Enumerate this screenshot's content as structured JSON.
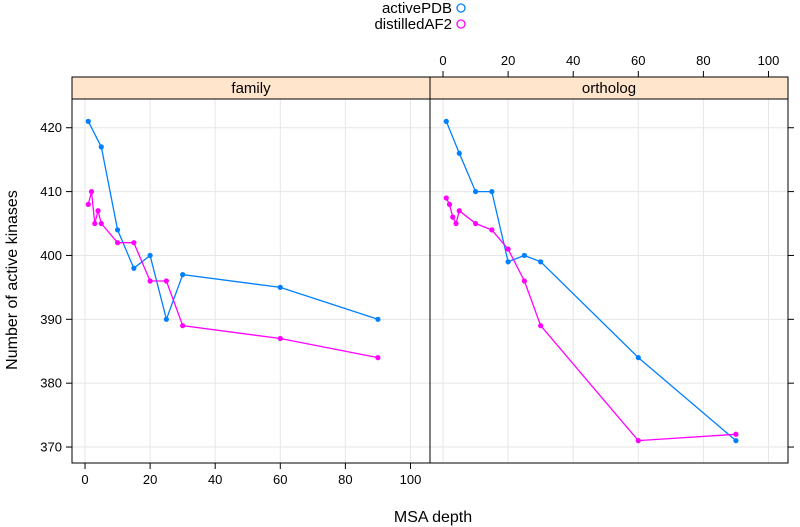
{
  "chart_data": {
    "type": "line",
    "xlabel": "MSA depth",
    "ylabel": "Number of active kinases",
    "xlim": [
      -4,
      106
    ],
    "ylim": [
      367.5,
      424.5
    ],
    "x_ticks": [
      0,
      20,
      40,
      60,
      80,
      100
    ],
    "y_ticks": [
      370,
      380,
      390,
      400,
      410,
      420
    ],
    "grid": true,
    "legend": {
      "placement": "top",
      "entries": [
        {
          "name": "activePDB",
          "color": "#0080ff"
        },
        {
          "name": "distilledAF2",
          "color": "#ff00ff"
        }
      ]
    },
    "panels": [
      {
        "strip": "family",
        "series": [
          {
            "name": "activePDB",
            "color": "#0080ff",
            "x": [
              1,
              5,
              10,
              15,
              20,
              25,
              30,
              60,
              90
            ],
            "y": [
              421,
              417,
              404,
              398,
              400,
              390,
              397,
              395,
              390
            ]
          },
          {
            "name": "distilledAF2",
            "color": "#ff00ff",
            "x": [
              1,
              2,
              3,
              4,
              5,
              10,
              15,
              20,
              25,
              30,
              60,
              90
            ],
            "y": [
              408,
              410,
              405,
              407,
              405,
              402,
              402,
              396,
              396,
              389,
              387,
              384
            ]
          }
        ]
      },
      {
        "strip": "ortholog",
        "series": [
          {
            "name": "activePDB",
            "color": "#0080ff",
            "x": [
              1,
              5,
              10,
              15,
              20,
              25,
              30,
              60,
              90
            ],
            "y": [
              421,
              416,
              410,
              410,
              399,
              400,
              399,
              384,
              371
            ]
          },
          {
            "name": "distilledAF2",
            "color": "#ff00ff",
            "x": [
              1,
              2,
              3,
              4,
              5,
              10,
              15,
              20,
              25,
              30,
              60,
              90
            ],
            "y": [
              409,
              408,
              406,
              405,
              407,
              405,
              404,
              401,
              396,
              389,
              371,
              372
            ]
          }
        ]
      }
    ]
  }
}
